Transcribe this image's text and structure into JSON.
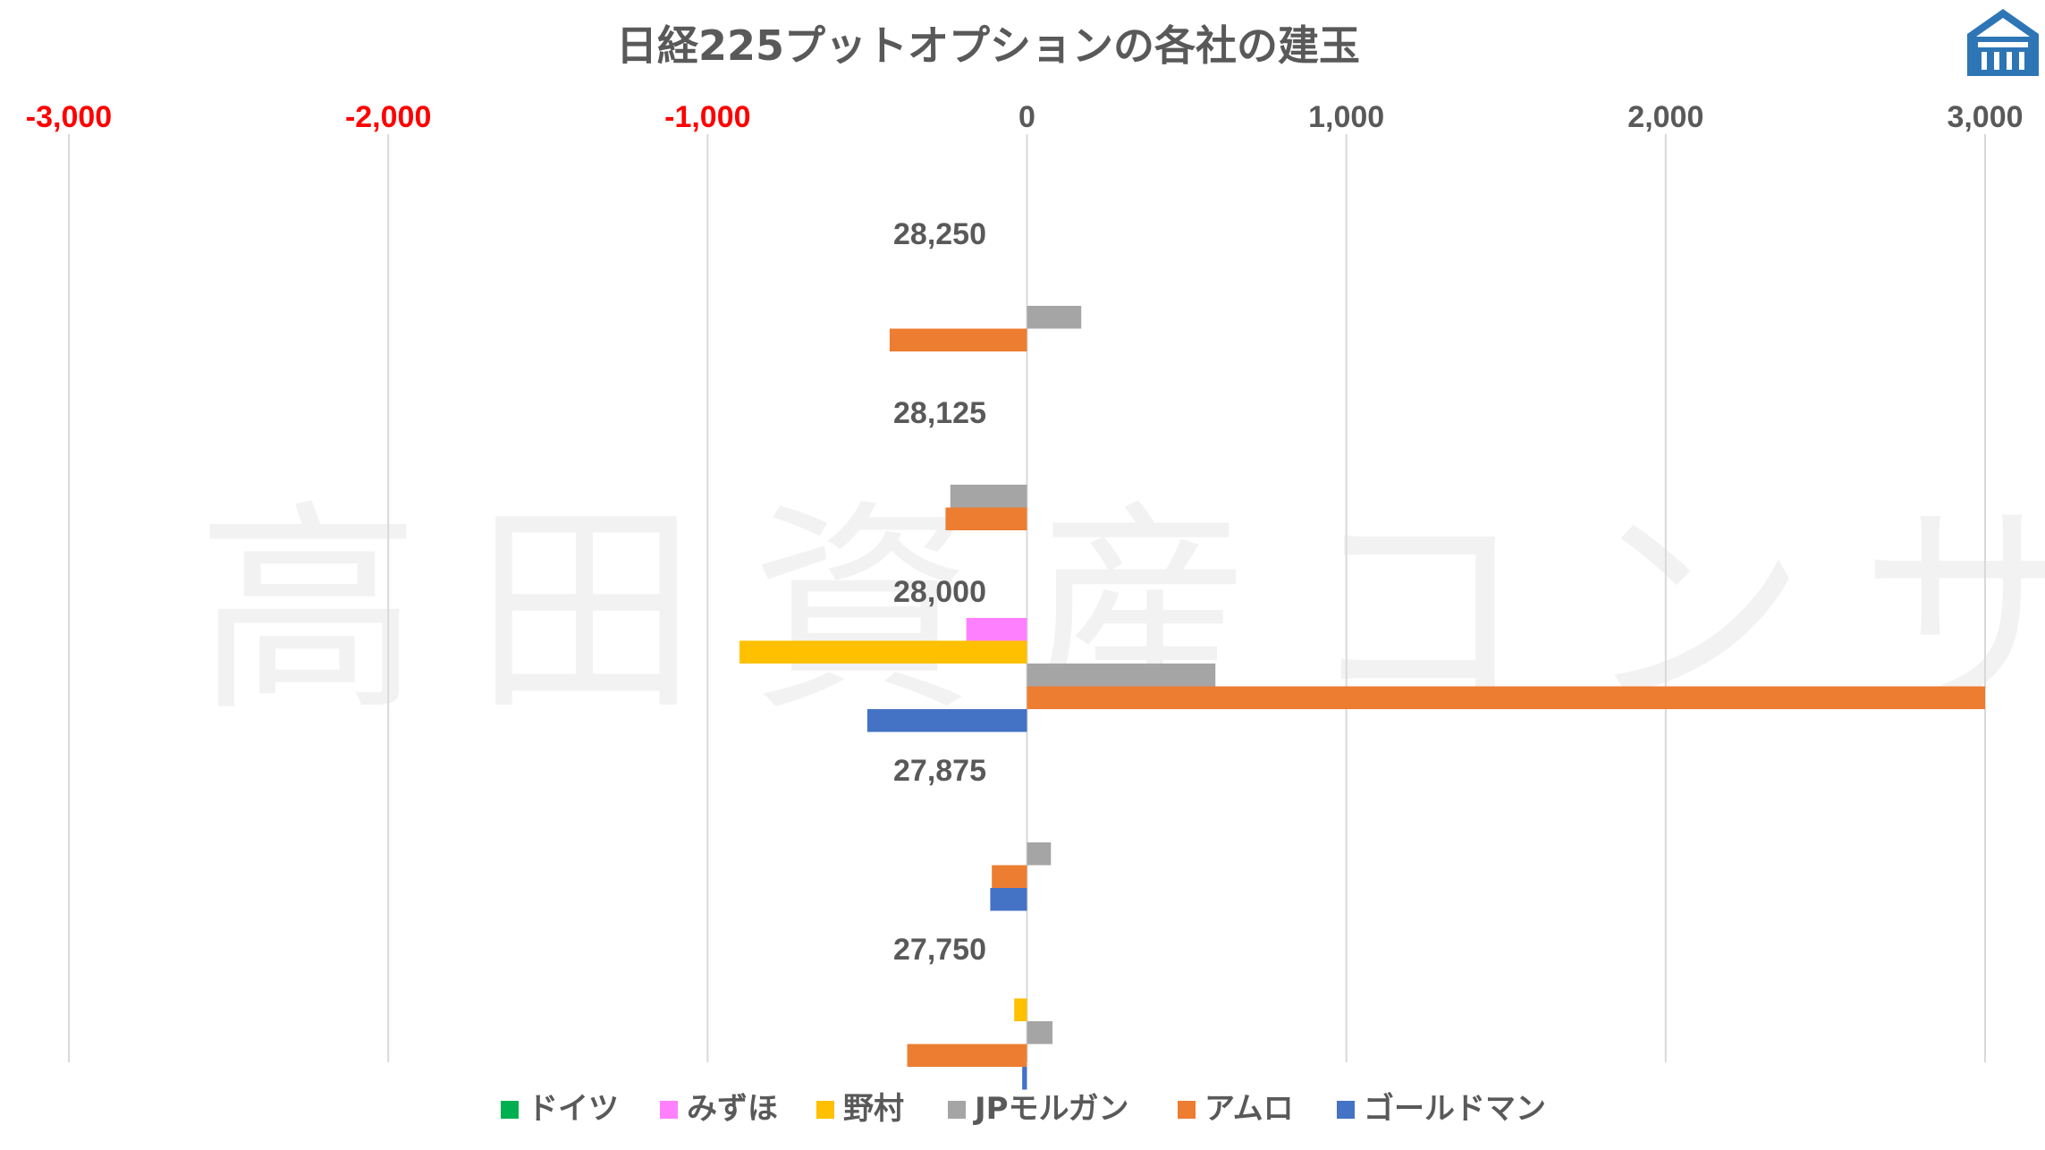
{
  "watermark": "高田資産コンサル",
  "colors": {
    "negative_tick": "#ff0000",
    "tick": "#595959",
    "grid": "#d9d9d9",
    "logo": "#2e75b6"
  },
  "chart_data": {
    "type": "bar",
    "orientation": "horizontal",
    "title": "日経225プットオプションの各社の建玉",
    "xlim": [
      -3000,
      3000
    ],
    "x_ticks": [
      -3000,
      -2000,
      -1000,
      0,
      1000,
      2000,
      3000
    ],
    "x_tick_labels": [
      "-3,000",
      "-2,000",
      "-1,000",
      "0",
      "1,000",
      "2,000",
      "3,000"
    ],
    "x_axis_position": "top",
    "grid": true,
    "legend_position": "bottom",
    "categories": [
      "28,250",
      "28,125",
      "28,000",
      "27,875",
      "27,750"
    ],
    "series": [
      {
        "name": "ドイツ",
        "color": "#00b050",
        "values": [
          0,
          0,
          0,
          0,
          0
        ]
      },
      {
        "name": "みずほ",
        "color": "#ff80ff",
        "values": [
          0,
          0,
          -190,
          0,
          0
        ]
      },
      {
        "name": "野村",
        "color": "#ffc000",
        "values": [
          0,
          0,
          -900,
          0,
          -40
        ]
      },
      {
        "name": "JPモルガン",
        "color": "#a5a5a5",
        "values": [
          170,
          -240,
          590,
          75,
          80
        ]
      },
      {
        "name": "アムロ",
        "color": "#ed7d31",
        "values": [
          -430,
          -255,
          3000,
          -110,
          -375
        ]
      },
      {
        "name": "ゴールドマン",
        "color": "#4472c4",
        "values": [
          0,
          0,
          -500,
          -115,
          -15
        ]
      }
    ]
  }
}
